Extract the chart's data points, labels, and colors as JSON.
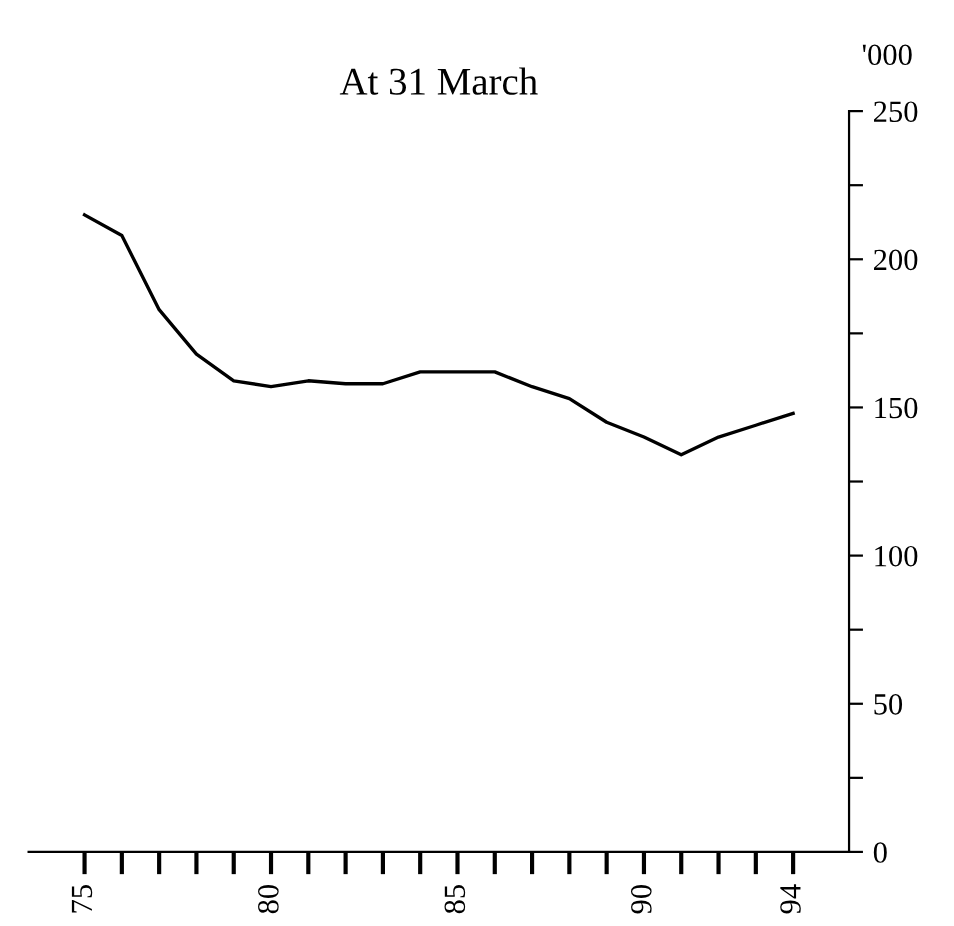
{
  "chart_data": {
    "type": "line",
    "title": "At 31 March",
    "ylabel": "'000",
    "x": [
      75,
      76,
      77,
      78,
      79,
      80,
      81,
      82,
      83,
      84,
      85,
      86,
      87,
      88,
      89,
      90,
      91,
      92,
      93,
      94
    ],
    "series": [
      {
        "color": "#000000",
        "values": [
          215,
          208,
          183,
          168,
          159,
          157,
          159,
          158,
          158,
          162,
          162,
          162,
          157,
          153,
          145,
          140,
          134,
          140,
          144,
          148
        ]
      }
    ],
    "xlim": [
      73.5,
      95.5
    ],
    "ylim": [
      0,
      250
    ],
    "xticks": [
      75,
      {
        "value": 76,
        "label": null
      },
      {
        "value": 77,
        "label": null
      },
      {
        "value": 78,
        "label": null
      },
      {
        "value": 79,
        "label": null
      },
      80,
      {
        "value": 81,
        "label": null
      },
      {
        "value": 82,
        "label": null
      },
      {
        "value": 83,
        "label": null
      },
      {
        "value": 84,
        "label": null
      },
      85,
      {
        "value": 86,
        "label": null
      },
      {
        "value": 87,
        "label": null
      },
      {
        "value": 88,
        "label": null
      },
      {
        "value": 89,
        "label": null
      },
      90,
      {
        "value": 91,
        "label": null
      },
      {
        "value": 92,
        "label": null
      },
      {
        "value": 93,
        "label": null
      },
      94
    ],
    "yticks": [
      0,
      {
        "value": 25,
        "label": null
      },
      50,
      {
        "value": 75,
        "label": null
      },
      100,
      {
        "value": 125,
        "label": null
      },
      150,
      {
        "value": 175,
        "label": null
      },
      200,
      {
        "value": 225,
        "label": null
      },
      250
    ],
    "grid": false,
    "legend": false,
    "marker": "none",
    "line_style": "solid"
  }
}
